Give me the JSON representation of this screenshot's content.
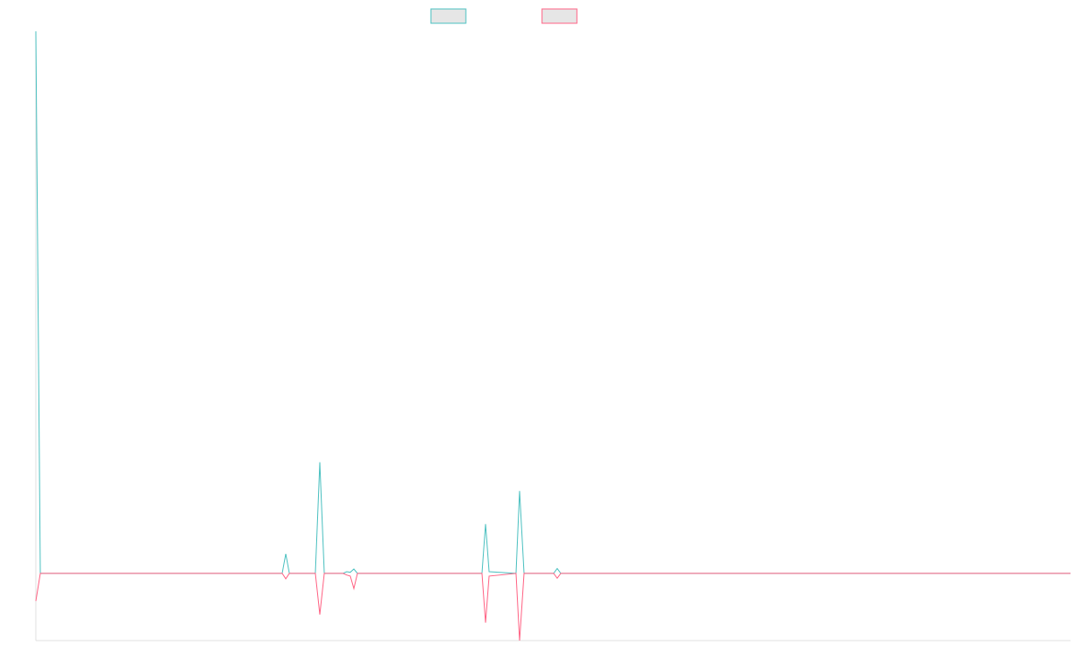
{
  "chart_data": {
    "type": "line",
    "x": [
      0,
      5,
      275,
      279,
      283,
      312,
      317,
      322,
      343,
      347,
      351,
      355,
      359,
      498,
      502,
      506,
      536,
      540,
      545,
      578,
      582,
      586,
      1155
    ],
    "xlim": [
      0,
      1155
    ],
    "ylim": [
      -12.4,
      100
    ],
    "series": [
      {
        "color": "#4bc0c0",
        "values": [
          100,
          0,
          0,
          3.6,
          0,
          0,
          20.5,
          0,
          0,
          0.3,
          0.2,
          0.8,
          0,
          0,
          9.1,
          0.3,
          0,
          15.2,
          0,
          0,
          0.9,
          0,
          0
        ]
      },
      {
        "color": "#ff6384",
        "values": [
          -5.1,
          0,
          0,
          -1,
          0,
          0,
          -7.6,
          0,
          0,
          -0.3,
          -0.5,
          -2.8,
          0,
          0,
          -9.1,
          -0.5,
          0,
          -12.4,
          0,
          0,
          -0.9,
          0,
          0
        ]
      }
    ],
    "legend": "top"
  }
}
